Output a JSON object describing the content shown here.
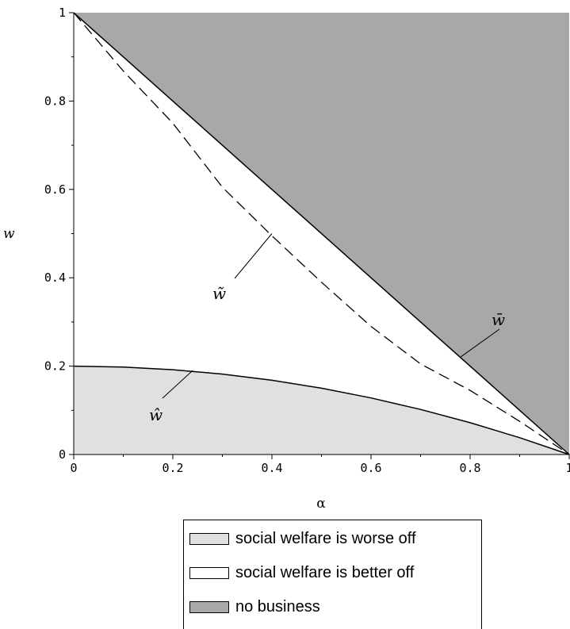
{
  "chart_data": {
    "type": "area",
    "title": "",
    "xlabel": "α",
    "ylabel": "w",
    "xlim": [
      0,
      1
    ],
    "ylim": [
      0,
      1
    ],
    "x_ticks": [
      "0",
      "0.2",
      "0.4",
      "0.6",
      "0.8",
      "1"
    ],
    "y_ticks": [
      "0",
      "0.2",
      "0.4",
      "0.6",
      "0.8",
      "1"
    ],
    "regions": [
      {
        "name": "social welfare is worse off",
        "color": "#e0e0e0",
        "bounds": "0 ≤ w ≤ ŵ(α)"
      },
      {
        "name": "social welfare is better off",
        "color": "#ffffff",
        "bounds": "ŵ(α) ≤ w ≤ w̄(α)"
      },
      {
        "name": "no business",
        "color": "#a8a8a8",
        "bounds": "w ≥ w̄(α)"
      }
    ],
    "series": [
      {
        "name": "w̄",
        "style": "solid",
        "x": [
          0,
          0.2,
          0.4,
          0.6,
          0.8,
          1.0
        ],
        "y": [
          1.0,
          0.8,
          0.6,
          0.4,
          0.2,
          0.0
        ]
      },
      {
        "name": "w̃",
        "style": "dashed",
        "x": [
          0,
          0.1,
          0.2,
          0.3,
          0.4,
          0.5,
          0.6,
          0.7,
          0.8,
          0.9,
          1.0
        ],
        "y": [
          1.0,
          0.868,
          0.75,
          0.605,
          0.495,
          0.39,
          0.29,
          0.205,
          0.145,
          0.075,
          0.0
        ]
      },
      {
        "name": "ŵ",
        "style": "solid",
        "x": [
          0,
          0.1,
          0.2,
          0.3,
          0.4,
          0.5,
          0.6,
          0.7,
          0.8,
          0.9,
          1.0
        ],
        "y": [
          0.2,
          0.198,
          0.192,
          0.182,
          0.168,
          0.15,
          0.128,
          0.102,
          0.072,
          0.038,
          0.0
        ]
      }
    ],
    "annotations": [
      {
        "label": "w̃",
        "points_to": "dashed curve",
        "at": [
          0.4,
          0.5
        ]
      },
      {
        "label": "w̄",
        "points_to": "upper solid line",
        "at": [
          0.78,
          0.22
        ]
      },
      {
        "label": "ŵ",
        "points_to": "lower solid curve",
        "at": [
          0.24,
          0.19
        ]
      }
    ],
    "legend": {
      "placement": "bottom-center",
      "items": [
        {
          "label": "social welfare is worse off",
          "color": "#e0e0e0"
        },
        {
          "label": "social welfare is better off",
          "color": "#ffffff"
        },
        {
          "label": "no business",
          "color": "#a8a8a8"
        }
      ]
    },
    "grid": false
  }
}
